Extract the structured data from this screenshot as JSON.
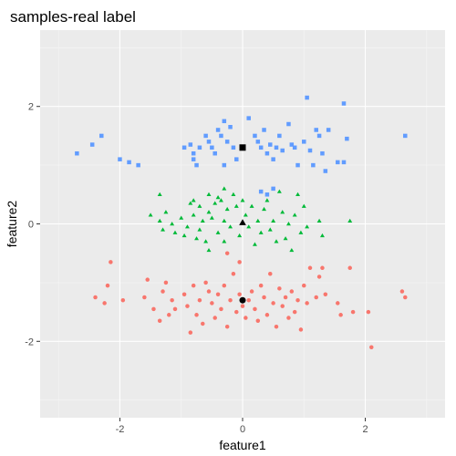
{
  "chart_data": {
    "type": "scatter",
    "title": "samples-real label",
    "xlabel": "feature1",
    "ylabel": "feature2",
    "xlim": [
      -3.3,
      3.3
    ],
    "ylim": [
      -3.3,
      3.3
    ],
    "xticks": [
      -2,
      0,
      2
    ],
    "yticks": [
      -2,
      0,
      2
    ],
    "xtick_labels": [
      "-2",
      "0",
      "2"
    ],
    "ytick_labels": [
      "-2",
      "0",
      "2"
    ],
    "grid": true,
    "legend": "none",
    "panel_background": "#ebebeb",
    "series": [
      {
        "color": "#619cff",
        "shape": "square",
        "points": [
          [
            -2.7,
            1.2
          ],
          [
            -2.45,
            1.35
          ],
          [
            -2.3,
            1.5
          ],
          [
            -2.0,
            1.1
          ],
          [
            -1.85,
            1.05
          ],
          [
            -1.7,
            1.0
          ],
          [
            -0.95,
            1.3
          ],
          [
            -0.85,
            1.35
          ],
          [
            -0.8,
            1.2
          ],
          [
            -0.8,
            1.1
          ],
          [
            -0.7,
            1.3
          ],
          [
            -0.75,
            1.0
          ],
          [
            -0.6,
            1.5
          ],
          [
            -0.55,
            1.4
          ],
          [
            -0.5,
            1.3
          ],
          [
            -0.45,
            1.2
          ],
          [
            -0.4,
            1.6
          ],
          [
            -0.35,
            1.5
          ],
          [
            -0.3,
            1.75
          ],
          [
            -0.25,
            1.4
          ],
          [
            -0.3,
            1.0
          ],
          [
            -0.2,
            1.65
          ],
          [
            -0.15,
            1.3
          ],
          [
            -0.1,
            1.1
          ],
          [
            0.1,
            1.8
          ],
          [
            0.2,
            1.5
          ],
          [
            0.25,
            1.4
          ],
          [
            0.3,
            1.3
          ],
          [
            0.35,
            1.6
          ],
          [
            0.4,
            1.2
          ],
          [
            0.45,
            1.35
          ],
          [
            0.5,
            1.1
          ],
          [
            0.55,
            1.3
          ],
          [
            0.6,
            1.5
          ],
          [
            0.65,
            1.25
          ],
          [
            0.75,
            1.7
          ],
          [
            0.8,
            1.35
          ],
          [
            0.85,
            1.3
          ],
          [
            0.9,
            1.0
          ],
          [
            1.0,
            1.4
          ],
          [
            1.05,
            2.15
          ],
          [
            1.1,
            1.25
          ],
          [
            1.15,
            1.0
          ],
          [
            1.2,
            1.6
          ],
          [
            1.25,
            1.5
          ],
          [
            1.3,
            1.2
          ],
          [
            1.35,
            0.9
          ],
          [
            1.4,
            1.6
          ],
          [
            1.55,
            1.05
          ],
          [
            1.65,
            2.05
          ],
          [
            1.65,
            1.05
          ],
          [
            1.7,
            1.45
          ],
          [
            2.65,
            1.5
          ],
          [
            0.3,
            0.55
          ],
          [
            0.4,
            0.5
          ],
          [
            0.5,
            0.6
          ]
        ]
      },
      {
        "color": "#00ba38",
        "shape": "triangle",
        "points": [
          [
            -1.5,
            0.15
          ],
          [
            -1.35,
            0.05
          ],
          [
            -1.3,
            -0.1
          ],
          [
            -1.25,
            0.2
          ],
          [
            -1.15,
            0.0
          ],
          [
            -1.1,
            -0.15
          ],
          [
            -1.0,
            0.1
          ],
          [
            -0.95,
            -0.2
          ],
          [
            -0.9,
            -0.05
          ],
          [
            -0.85,
            0.35
          ],
          [
            -0.8,
            0.4
          ],
          [
            -0.8,
            0.15
          ],
          [
            -0.75,
            -0.25
          ],
          [
            -0.7,
            0.3
          ],
          [
            -0.7,
            -0.1
          ],
          [
            -0.65,
            0.05
          ],
          [
            -0.6,
            -0.3
          ],
          [
            -0.55,
            0.2
          ],
          [
            -0.55,
            -0.45
          ],
          [
            -0.5,
            0.1
          ],
          [
            -0.45,
            0.35
          ],
          [
            -0.4,
            -0.15
          ],
          [
            -0.35,
            0.4
          ],
          [
            -0.3,
            0.05
          ],
          [
            -0.3,
            -0.3
          ],
          [
            -0.25,
            0.25
          ],
          [
            -0.2,
            -0.05
          ],
          [
            -0.15,
            0.5
          ],
          [
            -0.1,
            0.3
          ],
          [
            -0.05,
            -0.2
          ],
          [
            0.0,
            0.4
          ],
          [
            0.05,
            0.15
          ],
          [
            0.1,
            -0.05
          ],
          [
            0.15,
            0.3
          ],
          [
            0.2,
            -0.35
          ],
          [
            0.25,
            0.05
          ],
          [
            0.3,
            -0.15
          ],
          [
            0.35,
            0.25
          ],
          [
            0.4,
            0.4
          ],
          [
            0.45,
            -0.1
          ],
          [
            0.5,
            0.05
          ],
          [
            0.55,
            -0.3
          ],
          [
            0.6,
            0.55
          ],
          [
            0.65,
            0.2
          ],
          [
            0.7,
            -0.25
          ],
          [
            0.75,
            0.0
          ],
          [
            0.8,
            -0.45
          ],
          [
            0.85,
            0.15
          ],
          [
            0.9,
            0.5
          ],
          [
            0.95,
            -0.15
          ],
          [
            1.0,
            0.3
          ],
          [
            1.05,
            -0.05
          ],
          [
            1.25,
            0.05
          ],
          [
            1.3,
            -0.2
          ],
          [
            1.75,
            0.05
          ],
          [
            -0.55,
            0.5
          ],
          [
            -0.4,
            0.45
          ],
          [
            -0.3,
            0.6
          ],
          [
            -1.35,
            0.5
          ]
        ]
      },
      {
        "color": "#f8766d",
        "shape": "circle",
        "points": [
          [
            -2.4,
            -1.25
          ],
          [
            -2.25,
            -1.35
          ],
          [
            -2.15,
            -0.65
          ],
          [
            -2.2,
            -1.05
          ],
          [
            -1.95,
            -1.3
          ],
          [
            -1.6,
            -1.25
          ],
          [
            -1.55,
            -0.95
          ],
          [
            -1.45,
            -1.45
          ],
          [
            -1.35,
            -1.65
          ],
          [
            -1.3,
            -1.15
          ],
          [
            -1.25,
            -1.0
          ],
          [
            -1.2,
            -1.55
          ],
          [
            -1.15,
            -1.3
          ],
          [
            -1.1,
            -1.45
          ],
          [
            -0.95,
            -1.2
          ],
          [
            -0.9,
            -1.4
          ],
          [
            -0.85,
            -1.85
          ],
          [
            -0.8,
            -1.05
          ],
          [
            -0.75,
            -1.55
          ],
          [
            -0.7,
            -1.3
          ],
          [
            -0.65,
            -1.7
          ],
          [
            -0.6,
            -1.0
          ],
          [
            -0.55,
            -1.15
          ],
          [
            -0.5,
            -1.35
          ],
          [
            -0.45,
            -1.6
          ],
          [
            -0.4,
            -1.2
          ],
          [
            -0.35,
            -1.45
          ],
          [
            -0.3,
            -1.05
          ],
          [
            -0.25,
            -1.75
          ],
          [
            -0.2,
            -1.3
          ],
          [
            -0.15,
            -0.85
          ],
          [
            -0.1,
            -1.5
          ],
          [
            -0.05,
            -1.2
          ],
          [
            0.0,
            -1.4
          ],
          [
            0.05,
            -1.6
          ],
          [
            0.1,
            -1.3
          ],
          [
            0.15,
            -1.15
          ],
          [
            0.2,
            -1.45
          ],
          [
            0.25,
            -1.65
          ],
          [
            0.3,
            -1.05
          ],
          [
            0.35,
            -1.25
          ],
          [
            0.4,
            -1.55
          ],
          [
            0.45,
            -0.85
          ],
          [
            0.5,
            -1.35
          ],
          [
            0.55,
            -1.75
          ],
          [
            0.6,
            -1.1
          ],
          [
            0.65,
            -1.4
          ],
          [
            0.7,
            -1.25
          ],
          [
            0.75,
            -1.6
          ],
          [
            0.8,
            -1.15
          ],
          [
            0.85,
            -1.5
          ],
          [
            0.9,
            -1.3
          ],
          [
            0.95,
            -1.8
          ],
          [
            1.0,
            -1.05
          ],
          [
            1.05,
            -1.35
          ],
          [
            1.1,
            -0.75
          ],
          [
            1.2,
            -1.25
          ],
          [
            1.25,
            -0.9
          ],
          [
            1.3,
            -0.75
          ],
          [
            1.35,
            -1.2
          ],
          [
            1.55,
            -1.35
          ],
          [
            1.6,
            -1.55
          ],
          [
            1.75,
            -0.75
          ],
          [
            1.8,
            -1.5
          ],
          [
            2.05,
            -1.5
          ],
          [
            2.1,
            -2.1
          ],
          [
            2.6,
            -1.15
          ],
          [
            2.65,
            -1.25
          ],
          [
            -0.25,
            -0.5
          ],
          [
            -0.05,
            -0.65
          ]
        ]
      }
    ],
    "centers": [
      {
        "x": 0.0,
        "y": 1.3,
        "shape": "square"
      },
      {
        "x": 0.0,
        "y": 0.02,
        "shape": "triangle"
      },
      {
        "x": 0.0,
        "y": -1.3,
        "shape": "circle"
      }
    ],
    "center_color": "#000000"
  }
}
